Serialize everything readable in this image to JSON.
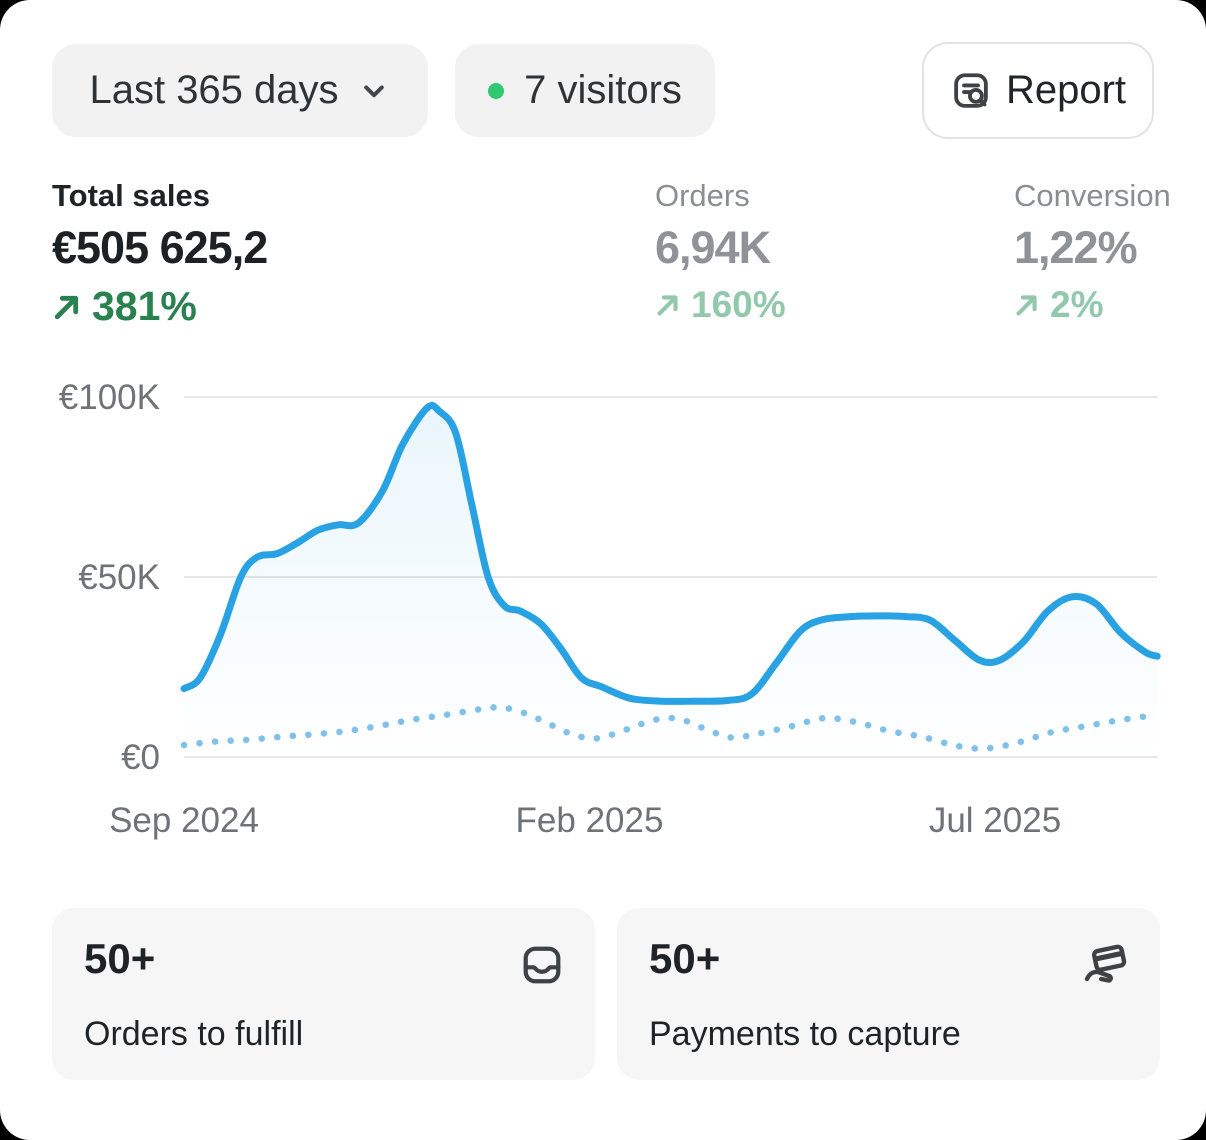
{
  "header": {
    "date_range": {
      "label": "Last 365 days"
    },
    "visitors_badge": {
      "label": "7 visitors",
      "dot_color": "#30C96F"
    },
    "report_button": {
      "label": "Report"
    }
  },
  "metrics": [
    {
      "id": "total-sales",
      "label": "Total sales",
      "value": "€505 625,2",
      "delta": "381%",
      "delta_direction": "up",
      "selected": true
    },
    {
      "id": "orders",
      "label": "Orders",
      "value": "6,94K",
      "delta": "160%",
      "delta_direction": "up",
      "selected": false
    },
    {
      "id": "conversion",
      "label": "Conversion",
      "value": "1,22%",
      "delta": "2%",
      "delta_direction": "up",
      "selected": false
    }
  ],
  "colors": {
    "background": "#000000",
    "card": "#FFFFFF",
    "pill_bg": "#F2F2F3",
    "action_card_bg": "#F6F6F7",
    "text_primary": "#1F2326",
    "text_subdued": "#8C9096",
    "axis_text": "#6F7377",
    "gridline": "#E6E7E8",
    "delta_positive_strong": "#298150",
    "delta_positive_subdued": "#92C8AB",
    "chart_line_current": "#29A2E3",
    "chart_line_previous": "#7FC1EB",
    "visitors_dot": "#30C96F"
  },
  "chart_data": {
    "type": "line",
    "unit": "EUR",
    "grid": true,
    "legend": false,
    "x_axis": {
      "ticks": [
        "Sep 2024",
        "Feb 2025",
        "Jul 2025"
      ],
      "tick_positions_months": [
        0,
        5,
        10
      ],
      "range_months": [
        0,
        12
      ]
    },
    "y_axis": {
      "ticks": [
        "€100K",
        "€50K",
        "€0"
      ],
      "tick_values": [
        100000,
        50000,
        0
      ],
      "ylim": [
        0,
        100000
      ]
    },
    "series": [
      {
        "name": "Total sales (current period)",
        "style": "solid",
        "color": "#29A2E3",
        "points_month_value": [
          [
            0,
            19000
          ],
          [
            0.2,
            22000
          ],
          [
            0.45,
            34000
          ],
          [
            0.7,
            50000
          ],
          [
            0.9,
            55500
          ],
          [
            1.15,
            56500
          ],
          [
            1.4,
            59500
          ],
          [
            1.65,
            63000
          ],
          [
            1.9,
            64500
          ],
          [
            2.15,
            65000
          ],
          [
            2.45,
            74000
          ],
          [
            2.7,
            87000
          ],
          [
            3.0,
            97000
          ],
          [
            3.15,
            96000
          ],
          [
            3.35,
            90000
          ],
          [
            3.55,
            70000
          ],
          [
            3.75,
            50000
          ],
          [
            3.95,
            42000
          ],
          [
            4.15,
            40500
          ],
          [
            4.4,
            37000
          ],
          [
            4.65,
            30000
          ],
          [
            4.9,
            22000
          ],
          [
            5.15,
            19500
          ],
          [
            5.5,
            16300
          ],
          [
            5.9,
            15500
          ],
          [
            6.3,
            15500
          ],
          [
            6.7,
            15700
          ],
          [
            7.0,
            17500
          ],
          [
            7.3,
            26000
          ],
          [
            7.6,
            35000
          ],
          [
            7.85,
            38000
          ],
          [
            8.15,
            38900
          ],
          [
            8.55,
            39200
          ],
          [
            8.9,
            39000
          ],
          [
            9.2,
            38000
          ],
          [
            9.5,
            32500
          ],
          [
            9.8,
            27000
          ],
          [
            10.05,
            26800
          ],
          [
            10.35,
            32000
          ],
          [
            10.65,
            40500
          ],
          [
            10.95,
            44500
          ],
          [
            11.25,
            42500
          ],
          [
            11.55,
            34500
          ],
          [
            11.85,
            29200
          ],
          [
            12,
            28000
          ]
        ]
      },
      {
        "name": "Total sales (previous period)",
        "style": "dotted",
        "color": "#7FC1EB",
        "points_month_value": [
          [
            0,
            3300
          ],
          [
            0.4,
            4300
          ],
          [
            0.8,
            4800
          ],
          [
            1.2,
            5600
          ],
          [
            1.6,
            6300
          ],
          [
            2.0,
            7200
          ],
          [
            2.4,
            8600
          ],
          [
            2.8,
            10300
          ],
          [
            3.2,
            11600
          ],
          [
            3.6,
            13100
          ],
          [
            3.9,
            13800
          ],
          [
            4.2,
            12200
          ],
          [
            4.5,
            9200
          ],
          [
            4.8,
            6200
          ],
          [
            5.1,
            5200
          ],
          [
            5.45,
            7600
          ],
          [
            5.8,
            10300
          ],
          [
            6.1,
            10600
          ],
          [
            6.45,
            7600
          ],
          [
            6.75,
            5400
          ],
          [
            7.1,
            6600
          ],
          [
            7.5,
            8600
          ],
          [
            7.9,
            10800
          ],
          [
            8.3,
            9600
          ],
          [
            8.7,
            7200
          ],
          [
            9.1,
            5600
          ],
          [
            9.55,
            3000
          ],
          [
            9.9,
            2400
          ],
          [
            10.3,
            4100
          ],
          [
            10.7,
            6900
          ],
          [
            11.1,
            8500
          ],
          [
            11.5,
            10100
          ],
          [
            11.9,
            11400
          ]
        ]
      }
    ]
  },
  "cards": [
    {
      "value": "50+",
      "label": "Orders to fulfill",
      "icon": "inbox-tray-icon"
    },
    {
      "value": "50+",
      "label": "Payments to capture",
      "icon": "hand-card-icon"
    }
  ]
}
